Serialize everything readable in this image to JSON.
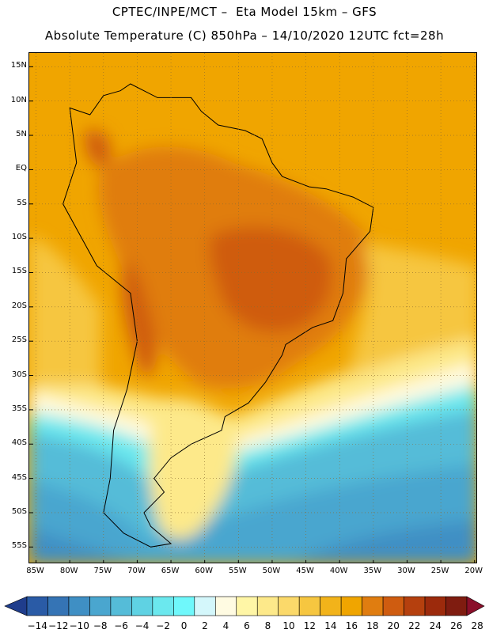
{
  "title_line1": "CPTEC/INPE/MCT –  Eta Model 15km – GFS",
  "title_line2": "Absolute Temperature (C) 850hPa – 14/10/2020 12UTC fct=28h",
  "map": {
    "lon_range": [
      -86,
      -19.5
    ],
    "lat_range": [
      -57.5,
      17
    ],
    "lat_ticks": [
      {
        "lat": 15,
        "label": "15N"
      },
      {
        "lat": 10,
        "label": "10N"
      },
      {
        "lat": 5,
        "label": "5N"
      },
      {
        "lat": 0,
        "label": "EQ"
      },
      {
        "lat": -5,
        "label": "5S"
      },
      {
        "lat": -10,
        "label": "10S"
      },
      {
        "lat": -15,
        "label": "15S"
      },
      {
        "lat": -20,
        "label": "20S"
      },
      {
        "lat": -25,
        "label": "25S"
      },
      {
        "lat": -30,
        "label": "30S"
      },
      {
        "lat": -35,
        "label": "35S"
      },
      {
        "lat": -40,
        "label": "40S"
      },
      {
        "lat": -45,
        "label": "45S"
      },
      {
        "lat": -50,
        "label": "50S"
      },
      {
        "lat": -55,
        "label": "55S"
      }
    ],
    "lon_ticks": [
      {
        "lon": -85,
        "label": "85W"
      },
      {
        "lon": -80,
        "label": "80W"
      },
      {
        "lon": -75,
        "label": "75W"
      },
      {
        "lon": -70,
        "label": "70W"
      },
      {
        "lon": -65,
        "label": "65W"
      },
      {
        "lon": -60,
        "label": "60W"
      },
      {
        "lon": -55,
        "label": "55W"
      },
      {
        "lon": -50,
        "label": "50W"
      },
      {
        "lon": -45,
        "label": "45W"
      },
      {
        "lon": -40,
        "label": "40W"
      },
      {
        "lon": -35,
        "label": "35W"
      },
      {
        "lon": -30,
        "label": "30W"
      },
      {
        "lon": -25,
        "label": "25W"
      },
      {
        "lon": -20,
        "label": "20W"
      }
    ]
  },
  "colorbar": {
    "tick_labels": [
      "-14",
      "-12",
      "-10",
      "-8",
      "-6",
      "-4",
      "-2",
      "0",
      "2",
      "4",
      "6",
      "8",
      "10",
      "12",
      "14",
      "16",
      "18",
      "20",
      "22",
      "24",
      "26",
      "28"
    ],
    "colors": [
      "#1f3d8c",
      "#2a5ba6",
      "#3574b5",
      "#3f8fc4",
      "#4aa6cf",
      "#55bcd8",
      "#5fd2e3",
      "#6be8ee",
      "#6ff8fb",
      "#d4f7fb",
      "#fffbe2",
      "#fff6a6",
      "#fde98a",
      "#fbd96a",
      "#f6c640",
      "#f2b31a",
      "#f0a500",
      "#e07d10",
      "#cf5c10",
      "#b5400e",
      "#9c2a0c",
      "#7f1c10",
      "#8a0f2a"
    ]
  }
}
